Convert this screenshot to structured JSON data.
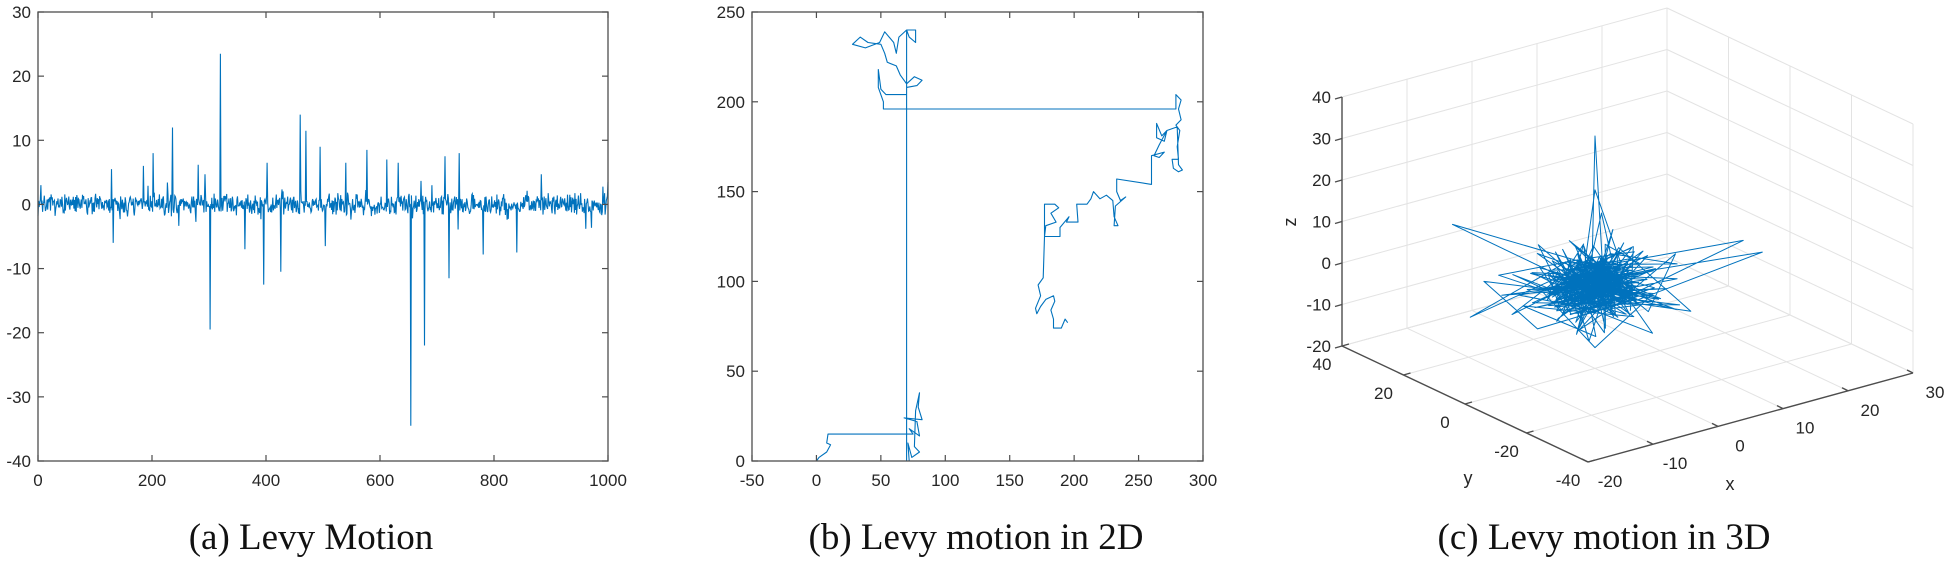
{
  "chart_data": [
    {
      "type": "line",
      "caption": "(a) Levy Motion",
      "xlim": [
        0,
        1000
      ],
      "ylim": [
        -40,
        30
      ],
      "xticks": [
        0,
        200,
        400,
        600,
        800,
        1000
      ],
      "yticks": [
        -40,
        -30,
        -20,
        -10,
        0,
        10,
        20,
        30
      ],
      "grid": false,
      "color": "#0072BD",
      "n_points": 1000,
      "typical_range": [
        -3,
        3
      ],
      "spikes": [
        [
          5,
          3
        ],
        [
          129,
          5.5
        ],
        [
          132,
          -6
        ],
        [
          185,
          6
        ],
        [
          202,
          8
        ],
        [
          236,
          12
        ],
        [
          281,
          6.2
        ],
        [
          293,
          4.7
        ],
        [
          302,
          -19.5
        ],
        [
          320,
          23.5
        ],
        [
          363,
          -7
        ],
        [
          396,
          -12.5
        ],
        [
          402,
          6.5
        ],
        [
          426,
          -10.5
        ],
        [
          460,
          14
        ],
        [
          470,
          11.5
        ],
        [
          495,
          9
        ],
        [
          504,
          -6.5
        ],
        [
          540,
          6.5
        ],
        [
          577,
          8.5
        ],
        [
          612,
          7
        ],
        [
          632,
          6.5
        ],
        [
          654,
          -34.5
        ],
        [
          678,
          -22
        ],
        [
          691,
          3
        ],
        [
          714,
          7.5
        ],
        [
          721,
          -11.5
        ],
        [
          739,
          8
        ],
        [
          781,
          -7.8
        ],
        [
          840,
          -7.5
        ],
        [
          883,
          4.7
        ],
        [
          1000,
          3.5
        ]
      ]
    },
    {
      "type": "line",
      "caption": "(b) Levy motion in 2D",
      "xlim": [
        -50,
        300
      ],
      "ylim": [
        0,
        250
      ],
      "xticks": [
        -50,
        0,
        50,
        100,
        150,
        200,
        250,
        300
      ],
      "yticks": [
        0,
        50,
        100,
        150,
        200,
        250
      ],
      "grid": false,
      "color": "#0072BD",
      "path": [
        [
          0,
          0
        ],
        [
          2,
          2
        ],
        [
          8,
          5
        ],
        [
          11,
          9
        ],
        [
          8,
          10
        ],
        [
          9,
          15
        ],
        [
          75,
          15
        ],
        [
          72,
          18
        ],
        [
          80,
          14
        ],
        [
          78,
          22
        ],
        [
          68,
          24
        ],
        [
          82,
          23
        ],
        [
          79,
          30
        ],
        [
          80,
          38
        ],
        [
          77,
          28
        ],
        [
          76,
          8
        ],
        [
          80,
          5
        ],
        [
          74,
          2
        ],
        [
          71,
          10
        ],
        [
          72,
          0
        ],
        [
          70,
          0
        ],
        [
          70,
          240
        ],
        [
          72,
          236
        ],
        [
          77,
          233
        ],
        [
          77,
          240
        ],
        [
          70,
          240
        ],
        [
          64,
          236
        ],
        [
          62,
          227
        ],
        [
          60,
          233
        ],
        [
          53,
          239
        ],
        [
          49,
          233
        ],
        [
          38,
          230
        ],
        [
          28,
          232
        ],
        [
          34,
          236
        ],
        [
          40,
          233
        ],
        [
          50,
          232
        ],
        [
          53,
          227
        ],
        [
          55,
          222
        ],
        [
          62,
          220
        ],
        [
          65,
          215
        ],
        [
          70,
          210
        ],
        [
          76,
          214
        ],
        [
          82,
          212
        ],
        [
          78,
          209
        ],
        [
          70,
          208
        ],
        [
          70,
          204
        ],
        [
          54,
          204
        ],
        [
          50,
          207
        ],
        [
          48,
          218
        ],
        [
          48,
          208
        ],
        [
          52,
          200
        ],
        [
          52,
          196
        ],
        [
          279,
          196
        ],
        [
          279,
          204
        ],
        [
          283,
          201
        ],
        [
          281,
          196
        ],
        [
          283,
          190
        ],
        [
          279,
          187
        ],
        [
          282,
          184
        ],
        [
          280,
          175
        ],
        [
          281,
          168
        ],
        [
          276,
          168
        ],
        [
          277,
          163
        ],
        [
          281,
          161
        ],
        [
          284,
          162
        ],
        [
          281,
          165
        ],
        [
          280,
          186
        ],
        [
          272,
          184
        ],
        [
          268,
          181
        ],
        [
          264,
          188
        ],
        [
          264,
          180
        ],
        [
          270,
          178
        ],
        [
          272,
          184
        ],
        [
          266,
          176
        ],
        [
          262,
          170
        ],
        [
          266,
          169
        ],
        [
          270,
          172
        ],
        [
          260,
          170
        ],
        [
          260,
          154
        ],
        [
          233,
          157
        ],
        [
          233,
          150
        ],
        [
          236,
          145
        ],
        [
          240,
          147
        ],
        [
          232,
          142
        ],
        [
          231,
          131
        ],
        [
          234,
          131
        ],
        [
          231,
          136
        ],
        [
          230,
          145
        ],
        [
          225,
          148
        ],
        [
          220,
          146
        ],
        [
          215,
          150
        ],
        [
          213,
          146
        ],
        [
          210,
          143
        ],
        [
          202,
          143
        ],
        [
          203,
          133
        ],
        [
          194,
          133
        ],
        [
          196,
          136
        ],
        [
          189,
          130
        ],
        [
          189,
          125
        ],
        [
          177,
          125
        ],
        [
          177,
          143
        ],
        [
          185,
          143
        ],
        [
          188,
          141
        ],
        [
          182,
          138
        ],
        [
          186,
          133
        ],
        [
          178,
          131
        ],
        [
          177,
          125
        ],
        [
          176,
          102
        ],
        [
          172,
          98
        ],
        [
          174,
          92
        ],
        [
          170,
          85
        ],
        [
          171,
          82
        ],
        [
          174,
          86
        ],
        [
          178,
          90
        ],
        [
          184,
          92
        ],
        [
          185,
          89
        ],
        [
          182,
          84
        ],
        [
          184,
          79
        ],
        [
          184,
          74
        ],
        [
          190,
          74
        ],
        [
          193,
          79
        ],
        [
          195,
          77
        ]
      ]
    },
    {
      "type": "line3d",
      "caption": "(c) Levy motion in 3D",
      "xlabel": "x",
      "ylabel": "y",
      "zlabel": "z",
      "xlim": [
        -20,
        30
      ],
      "ylim": [
        -40,
        40
      ],
      "zlim": [
        -20,
        40
      ],
      "xticks": [
        -20,
        -10,
        0,
        10,
        20,
        30
      ],
      "yticks": [
        -40,
        -20,
        0,
        20,
        40
      ],
      "zticks": [
        -20,
        -10,
        0,
        10,
        20,
        30,
        40
      ],
      "grid": true,
      "view": "default 3D (azimuth -37.5, elevation 30)",
      "color": "#0072BD",
      "core_center": [
        0,
        0,
        0
      ],
      "spike_ends": [
        [
          0,
          0,
          36
        ],
        [
          0,
          0,
          23
        ],
        [
          1,
          0,
          17
        ],
        [
          -3,
          40,
          2
        ],
        [
          -3,
          25,
          -5
        ],
        [
          -5,
          30,
          -16
        ],
        [
          30,
          9,
          -8
        ],
        [
          28,
          11,
          -5
        ],
        [
          10,
          -10,
          -7
        ],
        [
          0,
          0,
          -15
        ],
        [
          -4,
          10,
          8
        ],
        [
          3,
          -3,
          10
        ],
        [
          -6,
          6,
          -10
        ],
        [
          6,
          -6,
          -12
        ],
        [
          15,
          5,
          -3
        ],
        [
          -10,
          15,
          0
        ]
      ]
    }
  ]
}
